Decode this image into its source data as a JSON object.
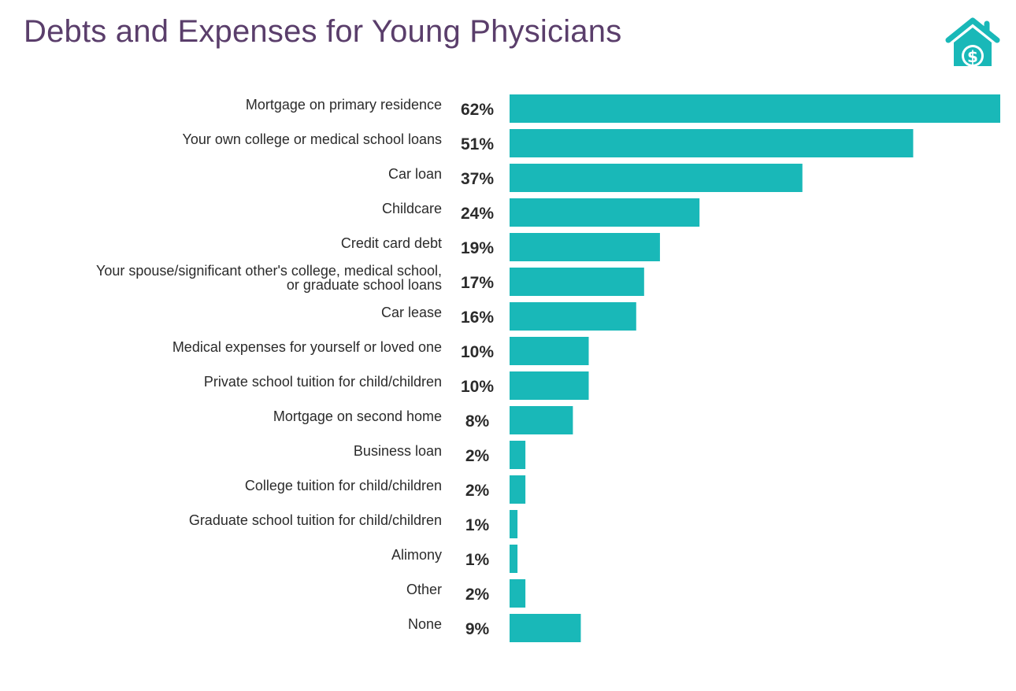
{
  "title": "Debts and Expenses for Young Physicians",
  "colors": {
    "bar": "#19b8b8",
    "title": "#5a3e6b",
    "text": "#2b2b2b"
  },
  "logo": {
    "icon": "house-dollar-icon",
    "color": "#19b8b8"
  },
  "chart_data": {
    "type": "bar",
    "orientation": "horizontal",
    "title": "Debts and Expenses for Young Physicians",
    "categories": [
      "Mortgage on primary residence",
      "Your own college or medical school loans",
      "Car loan",
      "Childcare",
      "Credit card debt",
      "Your spouse/significant other's college, medical school, or graduate school loans",
      "Car lease",
      "Medical expenses for yourself or loved one",
      "Private school tuition for child/children",
      "Mortgage on second home",
      "Business loan",
      "College tuition for child/children",
      "Graduate school tuition for child/children",
      "Alimony",
      "Other",
      "None"
    ],
    "values": [
      62,
      51,
      37,
      24,
      19,
      17,
      16,
      10,
      10,
      8,
      2,
      2,
      1,
      1,
      2,
      9
    ],
    "value_labels": [
      "62%",
      "51%",
      "37%",
      "24%",
      "19%",
      "17%",
      "16%",
      "10%",
      "10%",
      "8%",
      "2%",
      "2%",
      "1%",
      "1%",
      "2%",
      "9%"
    ],
    "xlim": [
      0,
      62
    ],
    "grid": false,
    "legend": "none"
  }
}
